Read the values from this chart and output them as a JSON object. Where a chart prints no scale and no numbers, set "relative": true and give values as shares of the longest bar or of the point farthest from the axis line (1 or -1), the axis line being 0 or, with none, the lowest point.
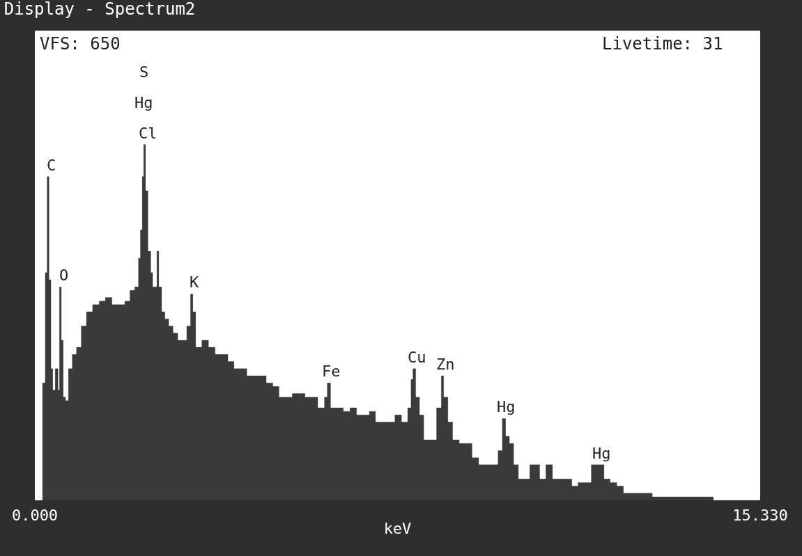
{
  "chart_data": {
    "type": "area",
    "title": "Display - Spectrum2",
    "xlabel": "keV",
    "relative": true,
    "tick_labels": "x",
    "xlim": [
      0,
      15.33
    ],
    "xticks": [
      {
        "value": 0,
        "label": "0.000"
      },
      {
        "value": 15.33,
        "label": "15.330"
      }
    ],
    "x": [
      0.16,
      0.22,
      0.26,
      0.3,
      0.34,
      0.38,
      0.43,
      0.49,
      0.52,
      0.56,
      0.6,
      0.65,
      0.71,
      0.79,
      0.88,
      0.98,
      1.09,
      1.22,
      1.36,
      1.49,
      1.63,
      1.77,
      1.9,
      2.01,
      2.11,
      2.19,
      2.23,
      2.27,
      2.3,
      2.34,
      2.39,
      2.45,
      2.49,
      2.54,
      2.58,
      2.62,
      2.68,
      2.75,
      2.83,
      2.92,
      3.02,
      3.13,
      3.21,
      3.29,
      3.34,
      3.4,
      3.53,
      3.67,
      3.81,
      3.94,
      4.08,
      4.21,
      4.35,
      4.48,
      4.62,
      4.76,
      4.89,
      5.03,
      5.16,
      5.3,
      5.44,
      5.57,
      5.71,
      5.84,
      5.98,
      6.12,
      6.18,
      6.25,
      6.39,
      6.52,
      6.66,
      6.8,
      6.93,
      7.07,
      7.2,
      7.34,
      7.47,
      7.61,
      7.75,
      7.88,
      7.95,
      7.99,
      8.05,
      8.13,
      8.22,
      8.36,
      8.49,
      8.59,
      8.64,
      8.73,
      8.83,
      8.97,
      9.11,
      9.24,
      9.38,
      9.51,
      9.65,
      9.79,
      9.88,
      9.95,
      10.03,
      10.12,
      10.22,
      10.33,
      10.46,
      10.57,
      10.67,
      10.8,
      10.94,
      11.08,
      11.21,
      11.35,
      11.48,
      11.62,
      11.76,
      11.89,
      12.03,
      12.16,
      12.3,
      12.44,
      12.64,
      12.84,
      13.05,
      13.32,
      13.59,
      13.86,
      14.13,
      14.34,
      14.54,
      15.33
    ],
    "series": [
      {
        "color": "#3a3a3a",
        "values": [
          0.33,
          0.64,
          0.91,
          0.62,
          0.37,
          0.31,
          0.37,
          0.31,
          0.6,
          0.45,
          0.29,
          0.28,
          0.37,
          0.41,
          0.43,
          0.49,
          0.53,
          0.55,
          0.56,
          0.57,
          0.55,
          0.55,
          0.56,
          0.59,
          0.6,
          0.68,
          0.76,
          0.91,
          1.0,
          0.87,
          0.7,
          0.64,
          0.6,
          0.6,
          0.7,
          0.6,
          0.53,
          0.51,
          0.49,
          0.47,
          0.45,
          0.45,
          0.49,
          0.58,
          0.53,
          0.43,
          0.45,
          0.43,
          0.41,
          0.41,
          0.39,
          0.37,
          0.37,
          0.35,
          0.35,
          0.35,
          0.33,
          0.32,
          0.29,
          0.29,
          0.3,
          0.3,
          0.29,
          0.29,
          0.26,
          0.29,
          0.33,
          0.26,
          0.26,
          0.25,
          0.26,
          0.24,
          0.24,
          0.25,
          0.22,
          0.22,
          0.22,
          0.24,
          0.22,
          0.26,
          0.34,
          0.37,
          0.29,
          0.24,
          0.17,
          0.17,
          0.26,
          0.35,
          0.29,
          0.22,
          0.17,
          0.16,
          0.16,
          0.12,
          0.1,
          0.1,
          0.1,
          0.14,
          0.23,
          0.18,
          0.16,
          0.1,
          0.06,
          0.06,
          0.1,
          0.1,
          0.06,
          0.1,
          0.06,
          0.06,
          0.06,
          0.04,
          0.05,
          0.05,
          0.1,
          0.1,
          0.06,
          0.05,
          0.04,
          0.02,
          0.02,
          0.02,
          0.01,
          0.01,
          0.01,
          0.01,
          0.01,
          0.0,
          0.0,
          0.0
        ]
      }
    ],
    "annotations": [
      "VFS: 650",
      "Livetime: 31",
      {
        "text": "C",
        "x": 0.26,
        "y": 0.91
      },
      {
        "text": "O",
        "x": 0.52,
        "y": 0.6
      },
      {
        "text": "Cl",
        "x": 2.3,
        "y": 1.0
      },
      "Hg",
      "S",
      {
        "text": "K",
        "x": 3.29,
        "y": 0.58
      },
      {
        "text": "Fe",
        "x": 6.18,
        "y": 0.33
      },
      {
        "text": "Cu",
        "x": 7.99,
        "y": 0.37
      },
      {
        "text": "Zn",
        "x": 8.59,
        "y": 0.35
      },
      {
        "text": "Hg",
        "x": 9.88,
        "y": 0.23
      },
      {
        "text": "Hg",
        "x": 11.89,
        "y": 0.1
      }
    ]
  }
}
